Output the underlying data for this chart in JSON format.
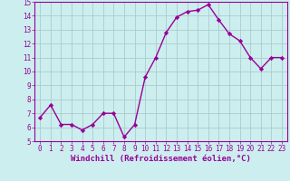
{
  "x": [
    0,
    1,
    2,
    3,
    4,
    5,
    6,
    7,
    8,
    9,
    10,
    11,
    12,
    13,
    14,
    15,
    16,
    17,
    18,
    19,
    20,
    21,
    22,
    23
  ],
  "y": [
    6.7,
    7.6,
    6.2,
    6.2,
    5.8,
    6.2,
    7.0,
    7.0,
    5.3,
    6.2,
    9.6,
    11.0,
    12.8,
    13.9,
    14.3,
    14.4,
    14.8,
    13.7,
    12.7,
    12.2,
    11.0,
    10.2,
    11.0,
    11.0
  ],
  "line_color": "#990099",
  "marker": "D",
  "marker_size": 2.2,
  "bg_color": "#cceeee",
  "grid_color": "#aacccc",
  "xlabel": "Windchill (Refroidissement éolien,°C)",
  "xlabel_color": "#990099",
  "tick_color": "#990099",
  "ylim": [
    5,
    15
  ],
  "xlim": [
    -0.5,
    23.5
  ],
  "yticks": [
    5,
    6,
    7,
    8,
    9,
    10,
    11,
    12,
    13,
    14,
    15
  ],
  "xticks": [
    0,
    1,
    2,
    3,
    4,
    5,
    6,
    7,
    8,
    9,
    10,
    11,
    12,
    13,
    14,
    15,
    16,
    17,
    18,
    19,
    20,
    21,
    22,
    23
  ],
  "tick_fontsize": 5.5,
  "xlabel_fontsize": 6.5,
  "linewidth": 1.0
}
